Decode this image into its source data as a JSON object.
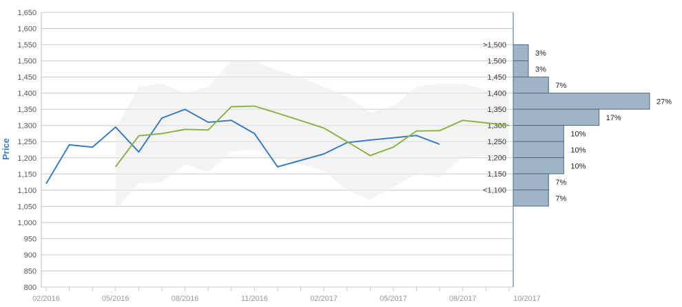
{
  "chart_data": {
    "type": "line",
    "ylabel": "Price",
    "ylim": [
      800,
      1650
    ],
    "y_ticks": [
      "1,650",
      "1,600",
      "1,550",
      "1,500",
      "1,450",
      "1,400",
      "1,350",
      "1,300",
      "1,250",
      "1,200",
      "1,150",
      "1,100",
      "1,050",
      "1,000",
      "950",
      "900",
      "850",
      "800"
    ],
    "x_ticks": [
      "02/2016",
      "05/2016",
      "08/2016",
      "11/2016",
      "02/2017",
      "05/2017",
      "08/2017",
      "10/2017"
    ],
    "grid": true,
    "colors": {
      "series_blue": "#3a7cc0",
      "series_green": "#8ab34a",
      "band": "#ebebeb",
      "histogram": "#9db5c5",
      "histogram_edge": "#4a6b80",
      "grid": "#c8c8c8"
    },
    "band": {
      "x": [
        3,
        4,
        5,
        6,
        7,
        8,
        9,
        10,
        11,
        12,
        13,
        14,
        15,
        16,
        17,
        18,
        19,
        20
      ],
      "upper": [
        1290,
        1420,
        1430,
        1400,
        1420,
        1500,
        1500,
        1470,
        1450,
        1420,
        1390,
        1340,
        1360,
        1420,
        1430,
        1430,
        1410,
        1405
      ],
      "lower": [
        1040,
        1120,
        1125,
        1180,
        1155,
        1220,
        1225,
        1200,
        1180,
        1160,
        1100,
        1070,
        1110,
        1150,
        1140,
        1200,
        1205,
        1200
      ]
    },
    "series": [
      {
        "x": [
          0,
          1,
          2,
          3,
          4,
          5,
          6,
          7,
          8,
          9,
          10,
          11,
          12,
          13,
          14,
          15,
          16,
          17,
          18
        ],
        "values": [
          1120,
          1240,
          1233,
          1295,
          1218,
          1323,
          1350,
          1310,
          1316,
          1275,
          1172,
          1192,
          1212,
          1247,
          1255,
          1262,
          1269,
          1242,
          null
        ]
      },
      {
        "x": [
          3,
          4,
          5,
          6,
          7,
          8,
          9,
          10,
          11,
          12,
          13,
          14,
          15,
          16,
          17,
          18,
          19,
          20
        ],
        "values": [
          1172,
          1268,
          1275,
          1288,
          1286,
          1358,
          1360,
          1338,
          1315,
          1292,
          1250,
          1207,
          1233,
          1283,
          1284,
          1316,
          1308,
          1300
        ]
      }
    ],
    "histogram": [
      {
        "label": ">1,500",
        "percent": "3%",
        "value": 3
      },
      {
        "label": "1,500",
        "percent": "3%",
        "value": 3
      },
      {
        "label": "1,450",
        "percent": "7%",
        "value": 7
      },
      {
        "label": "1,400",
        "percent": "27%",
        "value": 27
      },
      {
        "label": "1,350",
        "percent": "17%",
        "value": 17
      },
      {
        "label": "1,300",
        "percent": "10%",
        "value": 10
      },
      {
        "label": "1,250",
        "percent": "10%",
        "value": 10
      },
      {
        "label": "1,200",
        "percent": "10%",
        "value": 10
      },
      {
        "label": "1,150",
        "percent": "7%",
        "value": 7
      },
      {
        "label": "<1,100",
        "percent": "7%",
        "value": 7
      }
    ],
    "histogram_last_label": "1,100"
  }
}
